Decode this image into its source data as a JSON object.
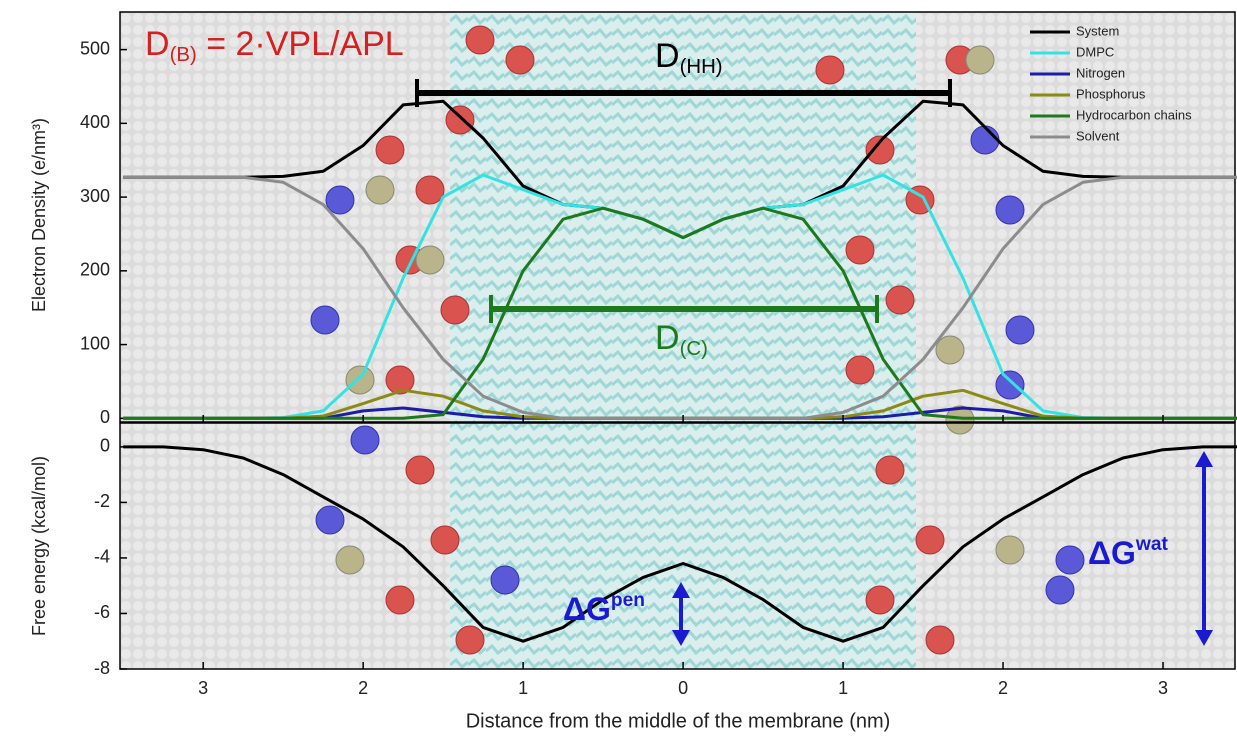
{
  "chart_data": [
    {
      "type": "line",
      "ylabel": "Electron Density (e/nm³)",
      "x": [
        -3.5,
        -3.25,
        -3,
        -2.75,
        -2.5,
        -2.25,
        -2,
        -1.75,
        -1.5,
        -1.25,
        -1,
        -0.75,
        -0.5,
        -0.25,
        0,
        0.25,
        0.5,
        0.75,
        1,
        1.25,
        1.5,
        1.75,
        2,
        2.25,
        2.5,
        2.75,
        3,
        3.25,
        3.5
      ],
      "xlim": [
        -3.52,
        3.45
      ],
      "ylim": [
        -5,
        551
      ],
      "yticks": [
        0,
        100,
        200,
        300,
        400,
        500
      ],
      "legend": "upper right",
      "series": [
        {
          "name": "System",
          "color": "#000000",
          "values": [
            327,
            327,
            327,
            327,
            328,
            335,
            370,
            425,
            430,
            380,
            315,
            290,
            285,
            270,
            245,
            270,
            285,
            290,
            315,
            380,
            430,
            425,
            370,
            335,
            328,
            327,
            327,
            327,
            327
          ]
        },
        {
          "name": "DMPC",
          "color": "#33e3e3",
          "values": [
            0,
            0,
            0,
            0,
            1,
            10,
            60,
            190,
            300,
            330,
            310,
            290,
            285,
            270,
            245,
            270,
            285,
            290,
            310,
            330,
            300,
            190,
            60,
            10,
            1,
            0,
            0,
            0,
            0
          ]
        },
        {
          "name": "Nitrogen",
          "color": "#1c1caa",
          "values": [
            0,
            0,
            0,
            0,
            0,
            0,
            10,
            14,
            8,
            2,
            0,
            0,
            0,
            0,
            0,
            0,
            0,
            0,
            0,
            2,
            8,
            14,
            10,
            0,
            0,
            0,
            0,
            0,
            0
          ]
        },
        {
          "name": "Phosphorus",
          "color": "#8a8a14",
          "values": [
            0,
            0,
            0,
            0,
            0,
            3,
            20,
            38,
            30,
            10,
            2,
            0,
            0,
            0,
            0,
            0,
            0,
            0,
            2,
            10,
            30,
            38,
            20,
            3,
            0,
            0,
            0,
            0,
            0
          ]
        },
        {
          "name": "Hydrocarbon chains",
          "color": "#1c7a1c",
          "values": [
            0,
            0,
            0,
            0,
            0,
            0,
            0,
            0,
            5,
            80,
            200,
            270,
            285,
            270,
            245,
            270,
            285,
            270,
            200,
            80,
            5,
            0,
            0,
            0,
            0,
            0,
            0,
            0,
            0
          ]
        },
        {
          "name": "Solvent",
          "color": "#8c8c8c",
          "values": [
            327,
            327,
            327,
            327,
            320,
            290,
            230,
            150,
            80,
            30,
            8,
            0,
            0,
            0,
            0,
            0,
            0,
            0,
            8,
            30,
            80,
            150,
            230,
            290,
            320,
            327,
            327,
            327,
            327
          ]
        }
      ],
      "annotations": [
        {
          "main": "D",
          "sub": "(B)",
          "rest": " = 2·VPL/APL",
          "color": "#d42020"
        },
        {
          "main": "D",
          "sub": "(HH)",
          "color": "#000000"
        },
        {
          "main": "D",
          "sub": "(C)",
          "color": "#1c7a1c"
        }
      ]
    },
    {
      "type": "line",
      "ylabel": "Free energy (kcal/mol)",
      "xlabel": "Distance from the middle of the membrane (nm)",
      "x": [
        -3.5,
        -3.25,
        -3,
        -2.75,
        -2.5,
        -2.25,
        -2,
        -1.75,
        -1.5,
        -1.25,
        -1,
        -0.75,
        -0.5,
        -0.25,
        0,
        0.25,
        0.5,
        0.75,
        1,
        1.25,
        1.5,
        1.75,
        2,
        2.25,
        2.5,
        2.75,
        3,
        3.25,
        3.5
      ],
      "xlim": [
        -3.52,
        3.45
      ],
      "ylim": [
        -8,
        0.86
      ],
      "xticks": [
        {
          "value": -3,
          "label": "3"
        },
        {
          "value": -2,
          "label": "2"
        },
        {
          "value": -1,
          "label": "1"
        },
        0,
        1,
        2,
        3
      ],
      "yticks": [
        0,
        -2,
        -4,
        -6,
        -8
      ],
      "series": [
        {
          "color": "#000000",
          "values": [
            0,
            0,
            -0.1,
            -0.4,
            -1.0,
            -1.8,
            -2.6,
            -3.6,
            -5.0,
            -6.5,
            -7.0,
            -6.5,
            -5.5,
            -4.7,
            -4.2,
            -4.7,
            -5.5,
            -6.5,
            -7.0,
            -6.5,
            -5.0,
            -3.6,
            -2.6,
            -1.8,
            -1.0,
            -0.4,
            -0.1,
            0,
            0
          ]
        }
      ],
      "annotations": [
        {
          "main": "ΔG",
          "sup": "pen",
          "color": "#1a1ad0"
        },
        {
          "main": "ΔG",
          "sup": "wat",
          "color": "#1a1ad0"
        }
      ]
    }
  ]
}
